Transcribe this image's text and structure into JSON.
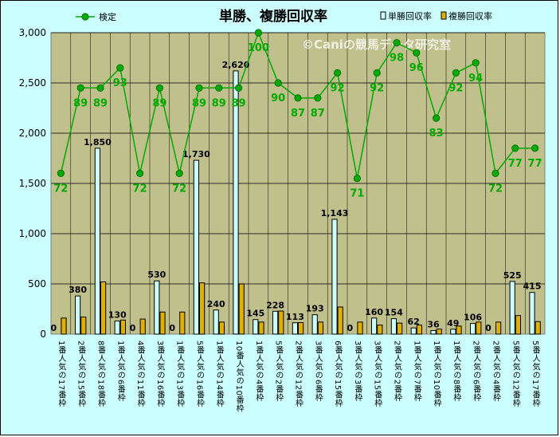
{
  "chart_data": {
    "type": "bar",
    "title": "単勝、複勝回収率",
    "watermark": "©Caniの競馬データ研究室",
    "categories": [
      "1番人気の17番枠",
      "2番人気の15番枠",
      "8番人気の18番枠",
      "1番人気の6番枠",
      "4番人気の11番枠",
      "3番人気の16番枠",
      "1番人気の13番枠",
      "5番人気の16番枠",
      "1番人気の14番枠",
      "10番人気の10番枠",
      "1番人気の4番枠",
      "5番人気の2番枠",
      "2番人気の12番枠",
      "3番人気の6番枠",
      "6番人気の15番枠",
      "3番人気の3番枠",
      "3番人気の15番枠",
      "2番人気の2番枠",
      "1番人気の7番枠",
      "1番人気の10番枠",
      "1番人気の8番枠",
      "2番人気の6番枠",
      "2番人気の4番枠",
      "5番人気の12番枠",
      "5番人気の17番枠"
    ],
    "series": [
      {
        "name": "単勝回収率",
        "color": "#ccffff",
        "values": [
          0,
          380,
          1850,
          130,
          0,
          530,
          0,
          1730,
          240,
          2620,
          145,
          228,
          113,
          193,
          1143,
          0,
          160,
          154,
          62,
          36,
          49,
          106,
          0,
          525,
          415
        ],
        "labels": [
          "0",
          "380",
          "1,850",
          "130",
          "0",
          "530",
          "0",
          "1,730",
          "240",
          "2,620",
          "145",
          "228",
          "113",
          "193",
          "1,143",
          "0",
          "160",
          "154",
          "62",
          "36",
          "49",
          "106",
          "0",
          "525",
          "415"
        ]
      },
      {
        "name": "複勝回収率",
        "color": "#e0b000",
        "values": [
          160,
          170,
          520,
          140,
          150,
          220,
          220,
          510,
          120,
          500,
          120,
          230,
          115,
          120,
          270,
          120,
          90,
          110,
          90,
          50,
          80,
          120,
          120,
          185,
          125
        ]
      },
      {
        "name": "検定",
        "type": "line",
        "axis": "secondary",
        "color": "#00aa00",
        "values": [
          72,
          89,
          89,
          93,
          72,
          89,
          72,
          89,
          89,
          89,
          100,
          90,
          87,
          87,
          92,
          71,
          92,
          98,
          96,
          83,
          92,
          94,
          72,
          77,
          77
        ]
      }
    ],
    "y_axis": {
      "ylim": [
        0,
        3000
      ],
      "ticks": [
        0,
        500,
        1000,
        1500,
        2000,
        2500,
        3000
      ],
      "tick_labels": [
        "0",
        "500",
        "1,000",
        "1,500",
        "2,000",
        "2,500",
        "3,000"
      ]
    },
    "y2_axis": {
      "ylim": [
        40,
        100
      ],
      "visible": false
    },
    "grid": true,
    "legend": "top",
    "plot_background": "#c0c08c"
  }
}
